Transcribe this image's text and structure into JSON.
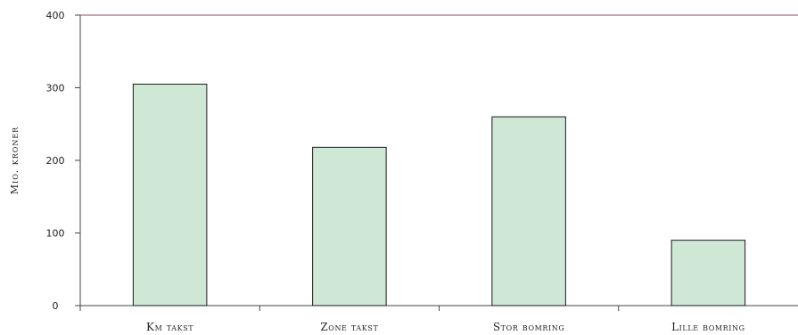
{
  "chart_data": {
    "type": "bar",
    "title": "",
    "xlabel": "",
    "ylabel": "Mio. kroner",
    "categories": [
      "Km takst",
      "Zone takst",
      "Stor bomring",
      "Lille bomring"
    ],
    "values": [
      305,
      218,
      260,
      90
    ],
    "ylim": [
      0,
      400
    ],
    "yticks": [
      0,
      100,
      200,
      300,
      400
    ],
    "grid": false,
    "colors": {
      "bar_fill": "#cfe8d6",
      "bar_stroke": "#1a1a1a",
      "top_border": "#8b4a5c",
      "axis": "#444444"
    }
  }
}
